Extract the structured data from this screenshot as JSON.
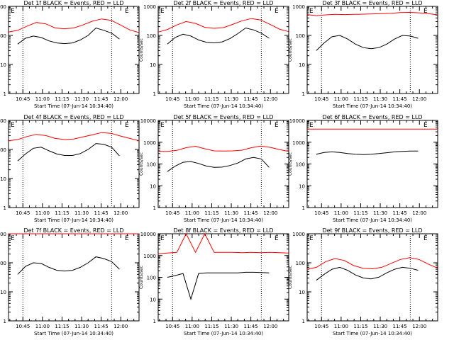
{
  "figure": {
    "background": "#ffffff",
    "axis_color": "#000000"
  },
  "chart_data": [
    {
      "type": "line",
      "title": "Det 1f  BLACK = Events, RED = LLD",
      "xlabel": "Start Time (07-Jun-14 10:34:40)",
      "ylabel": "Counts/sec",
      "x_range": [
        "10:34",
        "12:14"
      ],
      "ylim": [
        1,
        1000
      ],
      "y_scale": "log",
      "x_ticks": [
        "10:45",
        "11:00",
        "11:15",
        "11:30",
        "11:45",
        "12:00"
      ],
      "y_ticks": [
        "1",
        "10",
        "100",
        "1000"
      ],
      "annotations": [
        {
          "text": "E",
          "position": "top-left"
        },
        {
          "text": "E",
          "position": "top-right"
        }
      ],
      "dotted_lines_at": [
        "10:45",
        "11:53"
      ],
      "series": [
        {
          "name": "Events",
          "color": "#000000",
          "start": "10:41",
          "end": "11:59",
          "values": [
            50,
            80,
            95,
            85,
            65,
            55,
            52,
            55,
            70,
            100,
            180,
            150,
            120,
            75
          ],
          "gaps": []
        },
        {
          "name": "LLD",
          "color": "#ff0000",
          "start": "10:34",
          "end": "12:14",
          "values": [
            130,
            150,
            210,
            280,
            250,
            180,
            170,
            180,
            230,
            310,
            370,
            330,
            230,
            155,
            125
          ],
          "gaps": []
        }
      ]
    },
    {
      "type": "line",
      "title": "Det 2f  BLACK = Events, RED = LLD",
      "xlabel": "Start Time (07-Jun-14 10:34:40)",
      "ylabel": "Counts/sec",
      "x_range": [
        "10:34",
        "12:14"
      ],
      "ylim": [
        1,
        1000
      ],
      "y_scale": "log",
      "x_ticks": [
        "10:45",
        "11:00",
        "11:15",
        "11:30",
        "11:45",
        "12:00"
      ],
      "y_ticks": [
        "1",
        "10",
        "100",
        "1000"
      ],
      "annotations": [
        {
          "text": "E",
          "position": "top-left"
        },
        {
          "text": "E",
          "position": "top-right"
        }
      ],
      "dotted_lines_at": [
        "10:45",
        "11:53"
      ],
      "series": [
        {
          "name": "Events",
          "color": "#000000",
          "start": "10:41",
          "end": "11:59",
          "values": [
            50,
            85,
            110,
            95,
            70,
            58,
            55,
            60,
            78,
            115,
            180,
            155,
            120,
            80
          ],
          "gaps": []
        },
        {
          "name": "LLD",
          "color": "#ff0000",
          "start": "10:34",
          "end": "12:14",
          "values": [
            130,
            160,
            230,
            300,
            260,
            190,
            175,
            185,
            240,
            320,
            380,
            340,
            240,
            165,
            135
          ],
          "gaps": []
        }
      ]
    },
    {
      "type": "line",
      "title": "Det 3f  BLACK = Events, RED = LLD",
      "xlabel": "Start Time (07-Jun-14 10:34:40)",
      "ylabel": "Counts/sec",
      "x_range": [
        "10:34",
        "12:14"
      ],
      "ylim": [
        1,
        1000
      ],
      "y_scale": "log",
      "x_ticks": [
        "10:45",
        "11:00",
        "11:15",
        "11:30",
        "11:45",
        "12:00"
      ],
      "y_ticks": [
        "1",
        "10",
        "100",
        "1000"
      ],
      "annotations": [
        {
          "text": "E",
          "position": "top-left"
        },
        {
          "text": "E",
          "position": "top-right"
        }
      ],
      "dotted_lines_at": [
        "10:45",
        "11:53"
      ],
      "series": [
        {
          "name": "Events",
          "color": "#000000",
          "start": "10:41",
          "end": "11:59",
          "values": [
            30,
            55,
            90,
            100,
            75,
            50,
            38,
            35,
            38,
            50,
            75,
            100,
            95,
            80
          ],
          "gaps": []
        },
        {
          "name": "LLD",
          "color": "#ff0000",
          "start": "10:34",
          "end": "12:14",
          "values": [
            520,
            480,
            510,
            530,
            520,
            530,
            540,
            550,
            560,
            580,
            610,
            620,
            600,
            560,
            510
          ],
          "gaps": []
        }
      ]
    },
    {
      "type": "line",
      "title": "Det 4f  BLACK = Events, RED = LLD",
      "xlabel": "Start Time (07-Jun-14 10:34:40)",
      "ylabel": "Counts/sec",
      "x_range": [
        "10:34",
        "12:14"
      ],
      "ylim": [
        1,
        1000
      ],
      "y_scale": "log",
      "x_ticks": [
        "10:45",
        "11:00",
        "11:15",
        "11:30",
        "11:45",
        "12:00"
      ],
      "y_ticks": [
        "1",
        "10",
        "100",
        "1000"
      ],
      "annotations": [
        {
          "text": "E",
          "position": "top-left"
        },
        {
          "text": "E",
          "position": "top-right"
        }
      ],
      "dotted_lines_at": [
        "10:45",
        "11:53"
      ],
      "series": [
        {
          "name": "Events",
          "color": "#000000",
          "start": "10:41",
          "end": "11:59",
          "values": [
            40,
            70,
            110,
            120,
            90,
            70,
            62,
            62,
            72,
            100,
            160,
            150,
            120,
            60
          ],
          "gaps": []
        },
        {
          "name": "LLD",
          "color": "#ff0000",
          "start": "10:34",
          "end": "12:14",
          "values": [
            200,
            220,
            280,
            330,
            300,
            240,
            220,
            230,
            270,
            320,
            380,
            360,
            290,
            240,
            200
          ],
          "gaps": []
        }
      ]
    },
    {
      "type": "line",
      "title": "Det 5f  BLACK = Events, RED = LLD",
      "xlabel": "Start Time (07-Jun-14 10:34:40)",
      "ylabel": "Counts/sec",
      "x_range": [
        "10:34",
        "12:14"
      ],
      "ylim": [
        1,
        10000
      ],
      "y_scale": "log",
      "x_ticks": [
        "10:45",
        "11:00",
        "11:15",
        "11:30",
        "11:45",
        "12:00"
      ],
      "y_ticks": [
        "1",
        "10",
        "100",
        "1000",
        "10000"
      ],
      "annotations": [
        {
          "text": "E",
          "position": "top-left"
        },
        {
          "text": "E",
          "position": "top-right"
        }
      ],
      "dotted_lines_at": [
        "10:45",
        "11:53"
      ],
      "series": [
        {
          "name": "Events",
          "color": "#000000",
          "start": "10:41",
          "end": "11:59",
          "values": [
            45,
            80,
            120,
            130,
            105,
            80,
            70,
            72,
            85,
            110,
            170,
            200,
            170,
            70
          ],
          "gaps": []
        },
        {
          "name": "LLD",
          "color": "#ff0000",
          "start": "10:34",
          "end": "12:14",
          "values": [
            380,
            380,
            420,
            560,
            650,
            500,
            400,
            390,
            400,
            430,
            560,
            660,
            580,
            460,
            380
          ],
          "gaps": []
        }
      ]
    },
    {
      "type": "line",
      "title": "Det 6f  BLACK = Events, RED = LLD",
      "xlabel": "Start Time (07-Jun-14 10:34:40)",
      "ylabel": "Counts/sec",
      "x_range": [
        "10:34",
        "12:14"
      ],
      "ylim": [
        1,
        10000
      ],
      "y_scale": "log",
      "x_ticks": [
        "10:45",
        "11:00",
        "11:15",
        "11:30",
        "11:45",
        "12:00"
      ],
      "y_ticks": [
        "1",
        "10",
        "100",
        "1000",
        "10000"
      ],
      "annotations": [
        {
          "text": "E",
          "position": "top-left"
        },
        {
          "text": "E",
          "position": "top-right"
        }
      ],
      "dotted_lines_at": [],
      "series": [
        {
          "name": "Events",
          "color": "#000000",
          "start": "10:41",
          "end": "11:59",
          "values": [
            280,
            340,
            360,
            340,
            300,
            280,
            270,
            280,
            300,
            330,
            360,
            380,
            390,
            390
          ],
          "gaps": []
        },
        {
          "name": "LLD",
          "color": "#ff0000",
          "start": "10:34",
          "end": "12:14",
          "values": [
            4000,
            4000,
            4000,
            4000,
            4000,
            4000,
            4000,
            4000,
            4000,
            4000,
            4000,
            4000,
            4000,
            4000,
            4000
          ],
          "gaps": []
        }
      ]
    },
    {
      "type": "line",
      "title": "Det 7f  BLACK = Events, RED = LLD",
      "xlabel": "Start Time (07-Jun-14 10:34:40)",
      "ylabel": "Counts/sec",
      "x_range": [
        "10:34",
        "12:14"
      ],
      "ylim": [
        1,
        1000
      ],
      "y_scale": "log",
      "x_ticks": [
        "10:45",
        "11:00",
        "11:15",
        "11:30",
        "11:45",
        "12:00"
      ],
      "y_ticks": [
        "1",
        "10",
        "100",
        "1000"
      ],
      "annotations": [
        {
          "text": "E",
          "position": "top-left"
        },
        {
          "text": "E",
          "position": "top-right"
        }
      ],
      "dotted_lines_at": [
        "10:45",
        "11:53"
      ],
      "series": [
        {
          "name": "Events",
          "color": "#000000",
          "start": "10:41",
          "end": "11:59",
          "values": [
            40,
            75,
            100,
            95,
            70,
            55,
            52,
            55,
            70,
            100,
            160,
            140,
            110,
            60
          ],
          "gaps": []
        },
        {
          "name": "LLD",
          "color": "#ff0000",
          "start": "10:34",
          "end": "12:14",
          "values": [
            1000,
            1050,
            1000,
            1080,
            1020,
            1000,
            1060,
            1000,
            1050,
            1000,
            1080,
            1000,
            1040,
            1000,
            1050
          ],
          "gaps": []
        }
      ]
    },
    {
      "type": "line",
      "title": "Det 8f  BLACK = Events, RED = LLD",
      "xlabel": "Start Time (07-Jun-14 10:34:40)",
      "ylabel": "Counts/sec",
      "x_range": [
        "10:34",
        "12:14"
      ],
      "ylim": [
        1,
        10000
      ],
      "y_scale": "log",
      "x_ticks": [
        "10:45",
        "11:00",
        "11:15",
        "11:30",
        "11:45",
        "12:00"
      ],
      "y_ticks": [
        "1",
        "10",
        "100",
        "1000",
        "10000"
      ],
      "annotations": [
        {
          "text": "E",
          "position": "top-left"
        },
        {
          "text": "E",
          "position": "top-right"
        }
      ],
      "dotted_lines_at": [
        "10:45",
        "11:53"
      ],
      "series": [
        {
          "name": "Events",
          "color": "#000000",
          "start": "10:41",
          "end": "11:59",
          "values": [
            100,
            120,
            150,
            10,
            150,
            160,
            160,
            160,
            160,
            160,
            170,
            170,
            165,
            160
          ],
          "gaps": []
        },
        {
          "name": "LLD",
          "color": "#ff0000",
          "start": "10:34",
          "end": "12:14",
          "values": [
            1200,
            1300,
            1400,
            10000,
            1400,
            10000,
            1400,
            1400,
            1400,
            1350,
            1400,
            1350,
            1400,
            1350,
            1300
          ],
          "gaps": []
        }
      ]
    },
    {
      "type": "line",
      "title": "Det 9f  BLACK = Events, RED = LLD",
      "xlabel": "Start Time (07-Jun-14 10:34:40)",
      "ylabel": "Counts/sec",
      "x_range": [
        "10:34",
        "12:14"
      ],
      "ylim": [
        1,
        1000
      ],
      "y_scale": "log",
      "x_ticks": [
        "10:45",
        "11:00",
        "11:15",
        "11:30",
        "11:45",
        "12:00"
      ],
      "y_ticks": [
        "1",
        "10",
        "100",
        "1000"
      ],
      "annotations": [
        {
          "text": "E",
          "position": "top-left"
        },
        {
          "text": "E",
          "position": "top-right"
        }
      ],
      "dotted_lines_at": [
        "10:45",
        "11:53"
      ],
      "series": [
        {
          "name": "Events",
          "color": "#000000",
          "start": "10:41",
          "end": "11:59",
          "values": [
            25,
            40,
            60,
            70,
            55,
            38,
            30,
            28,
            32,
            45,
            60,
            70,
            65,
            55
          ],
          "gaps": []
        },
        {
          "name": "LLD",
          "color": "#ff0000",
          "start": "10:34",
          "end": "12:14",
          "values": [
            60,
            70,
            110,
            140,
            120,
            80,
            65,
            62,
            70,
            95,
            130,
            150,
            130,
            90,
            65
          ],
          "gaps": []
        }
      ]
    }
  ]
}
